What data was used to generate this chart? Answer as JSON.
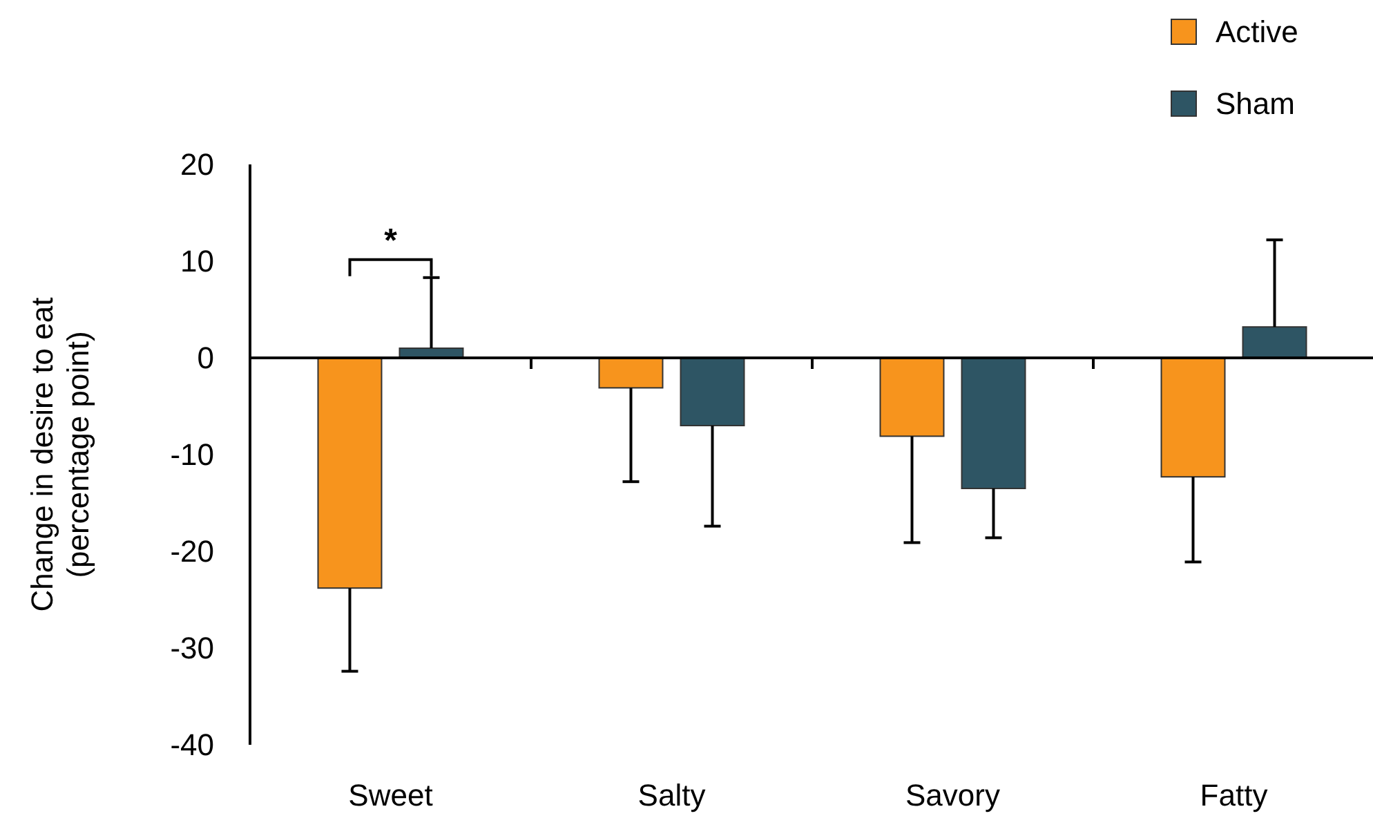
{
  "chart_data": {
    "type": "bar",
    "ylabel": "Change in desire to eat\n(percentage point)",
    "categories": [
      "Sweet",
      "Salty",
      "Savory",
      "Fatty"
    ],
    "series": [
      {
        "name": "Active",
        "color": "#f7941d",
        "values": [
          -23.8,
          -3.1,
          -8.1,
          -12.3
        ],
        "errors": [
          [
            -32.4,
            -23.8
          ],
          [
            -12.8,
            -3.1
          ],
          [
            -19.1,
            -8.1
          ],
          [
            -21.1,
            -12.3
          ]
        ]
      },
      {
        "name": "Sham",
        "color": "#2e5564",
        "values": [
          1.0,
          -7.0,
          -13.5,
          3.2
        ],
        "errors": [
          [
            1.0,
            8.3
          ],
          [
            -17.4,
            -7.0
          ],
          [
            -18.6,
            -13.5
          ],
          [
            3.2,
            12.2
          ]
        ]
      }
    ],
    "ylim": [
      -40,
      20
    ],
    "yticks": [
      -40,
      -30,
      -20,
      -10,
      0,
      10,
      20
    ],
    "legend": "top right",
    "annotations": [
      "*"
    ]
  }
}
